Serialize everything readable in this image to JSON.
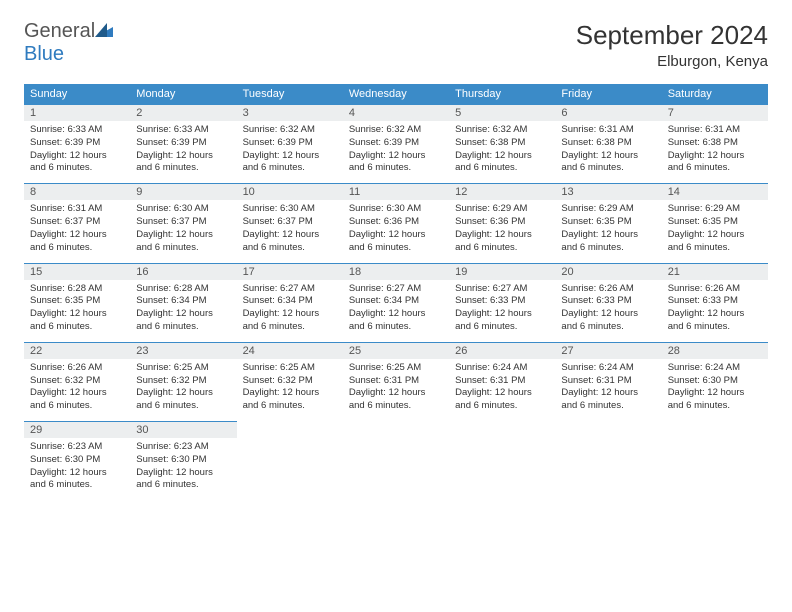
{
  "logo": {
    "text1": "General",
    "text2": "Blue"
  },
  "title": "September 2024",
  "location": "Elburgon, Kenya",
  "colors": {
    "header_bg": "#3b8bc8",
    "header_fg": "#ffffff",
    "daynum_bg": "#eceeef",
    "rule": "#3b8bc8",
    "logo_blue": "#2f7bbf"
  },
  "weekdays": [
    "Sunday",
    "Monday",
    "Tuesday",
    "Wednesday",
    "Thursday",
    "Friday",
    "Saturday"
  ],
  "days": [
    {
      "n": 1,
      "sr": "6:33 AM",
      "ss": "6:39 PM",
      "dl": "12 hours and 6 minutes."
    },
    {
      "n": 2,
      "sr": "6:33 AM",
      "ss": "6:39 PM",
      "dl": "12 hours and 6 minutes."
    },
    {
      "n": 3,
      "sr": "6:32 AM",
      "ss": "6:39 PM",
      "dl": "12 hours and 6 minutes."
    },
    {
      "n": 4,
      "sr": "6:32 AM",
      "ss": "6:39 PM",
      "dl": "12 hours and 6 minutes."
    },
    {
      "n": 5,
      "sr": "6:32 AM",
      "ss": "6:38 PM",
      "dl": "12 hours and 6 minutes."
    },
    {
      "n": 6,
      "sr": "6:31 AM",
      "ss": "6:38 PM",
      "dl": "12 hours and 6 minutes."
    },
    {
      "n": 7,
      "sr": "6:31 AM",
      "ss": "6:38 PM",
      "dl": "12 hours and 6 minutes."
    },
    {
      "n": 8,
      "sr": "6:31 AM",
      "ss": "6:37 PM",
      "dl": "12 hours and 6 minutes."
    },
    {
      "n": 9,
      "sr": "6:30 AM",
      "ss": "6:37 PM",
      "dl": "12 hours and 6 minutes."
    },
    {
      "n": 10,
      "sr": "6:30 AM",
      "ss": "6:37 PM",
      "dl": "12 hours and 6 minutes."
    },
    {
      "n": 11,
      "sr": "6:30 AM",
      "ss": "6:36 PM",
      "dl": "12 hours and 6 minutes."
    },
    {
      "n": 12,
      "sr": "6:29 AM",
      "ss": "6:36 PM",
      "dl": "12 hours and 6 minutes."
    },
    {
      "n": 13,
      "sr": "6:29 AM",
      "ss": "6:35 PM",
      "dl": "12 hours and 6 minutes."
    },
    {
      "n": 14,
      "sr": "6:29 AM",
      "ss": "6:35 PM",
      "dl": "12 hours and 6 minutes."
    },
    {
      "n": 15,
      "sr": "6:28 AM",
      "ss": "6:35 PM",
      "dl": "12 hours and 6 minutes."
    },
    {
      "n": 16,
      "sr": "6:28 AM",
      "ss": "6:34 PM",
      "dl": "12 hours and 6 minutes."
    },
    {
      "n": 17,
      "sr": "6:27 AM",
      "ss": "6:34 PM",
      "dl": "12 hours and 6 minutes."
    },
    {
      "n": 18,
      "sr": "6:27 AM",
      "ss": "6:34 PM",
      "dl": "12 hours and 6 minutes."
    },
    {
      "n": 19,
      "sr": "6:27 AM",
      "ss": "6:33 PM",
      "dl": "12 hours and 6 minutes."
    },
    {
      "n": 20,
      "sr": "6:26 AM",
      "ss": "6:33 PM",
      "dl": "12 hours and 6 minutes."
    },
    {
      "n": 21,
      "sr": "6:26 AM",
      "ss": "6:33 PM",
      "dl": "12 hours and 6 minutes."
    },
    {
      "n": 22,
      "sr": "6:26 AM",
      "ss": "6:32 PM",
      "dl": "12 hours and 6 minutes."
    },
    {
      "n": 23,
      "sr": "6:25 AM",
      "ss": "6:32 PM",
      "dl": "12 hours and 6 minutes."
    },
    {
      "n": 24,
      "sr": "6:25 AM",
      "ss": "6:32 PM",
      "dl": "12 hours and 6 minutes."
    },
    {
      "n": 25,
      "sr": "6:25 AM",
      "ss": "6:31 PM",
      "dl": "12 hours and 6 minutes."
    },
    {
      "n": 26,
      "sr": "6:24 AM",
      "ss": "6:31 PM",
      "dl": "12 hours and 6 minutes."
    },
    {
      "n": 27,
      "sr": "6:24 AM",
      "ss": "6:31 PM",
      "dl": "12 hours and 6 minutes."
    },
    {
      "n": 28,
      "sr": "6:24 AM",
      "ss": "6:30 PM",
      "dl": "12 hours and 6 minutes."
    },
    {
      "n": 29,
      "sr": "6:23 AM",
      "ss": "6:30 PM",
      "dl": "12 hours and 6 minutes."
    },
    {
      "n": 30,
      "sr": "6:23 AM",
      "ss": "6:30 PM",
      "dl": "12 hours and 6 minutes."
    }
  ],
  "labels": {
    "sunrise": "Sunrise:",
    "sunset": "Sunset:",
    "daylight": "Daylight:"
  },
  "first_weekday_index": 0
}
